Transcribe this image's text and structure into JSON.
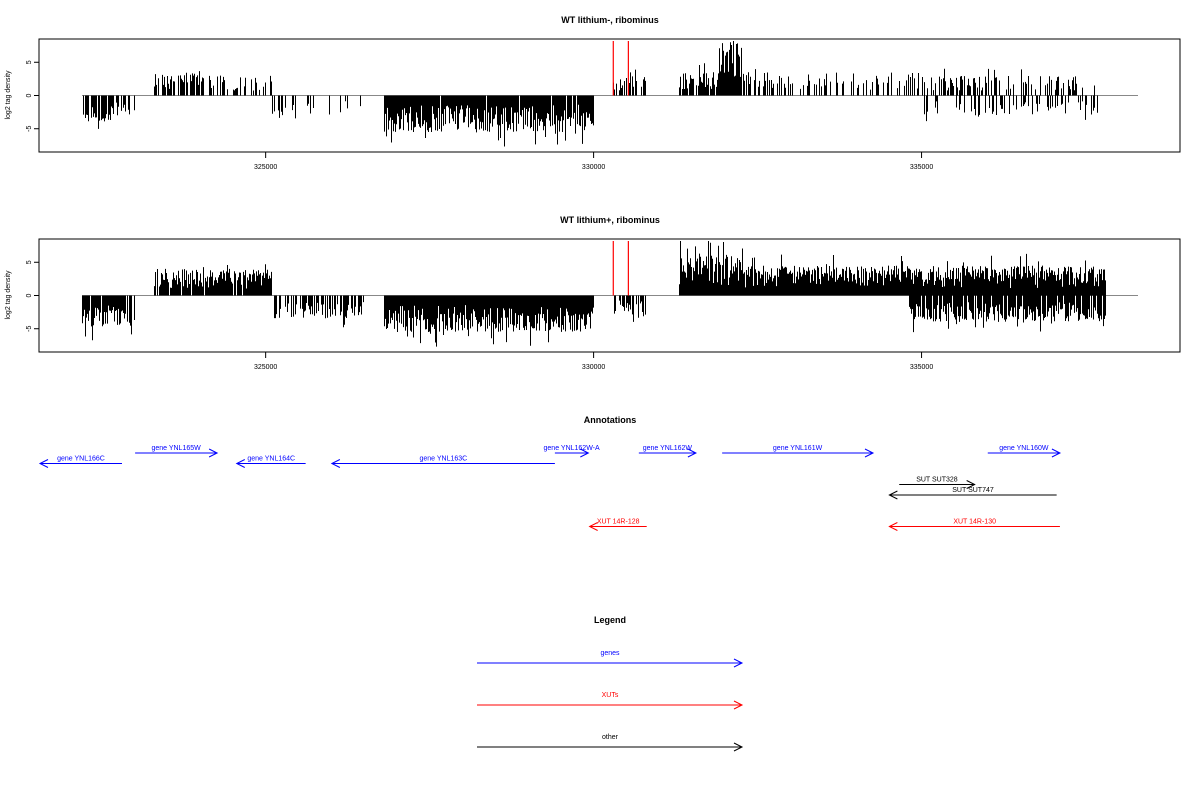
{
  "colors": {
    "gene": "#0000ff",
    "xut": "#ff0000",
    "other": "#000000",
    "highlight": "#ff0000",
    "density": "#000000",
    "baseline": "#888888"
  },
  "chart_data": [
    {
      "type": "bar",
      "title": "WT lithium-, ribominus",
      "ylabel": "log2 tag density",
      "xlim": [
        322200,
        338300
      ],
      "ylim": [
        -8.5,
        8.5
      ],
      "yticks": [
        -5,
        0,
        5
      ],
      "xticks": [
        325000,
        330000,
        335000
      ],
      "xtick_labels": [
        "325000",
        "330000",
        "335000"
      ],
      "highlight_lines": [
        330300,
        330530
      ],
      "segments": [
        {
          "start": 322200,
          "end": 322650,
          "sign": -1,
          "density": 0.7,
          "amp": 4.0
        },
        {
          "start": 322650,
          "end": 323000,
          "sign": -1,
          "density": 0.4,
          "amp": 3.0
        },
        {
          "start": 323000,
          "end": 323300,
          "sign": 0,
          "density": 0,
          "amp": 0
        },
        {
          "start": 323300,
          "end": 324000,
          "sign": 1,
          "density": 0.5,
          "amp": 3.8
        },
        {
          "start": 324000,
          "end": 325100,
          "sign": 1,
          "density": 0.25,
          "amp": 3.0
        },
        {
          "start": 325100,
          "end": 325500,
          "sign": -1,
          "density": 0.3,
          "amp": 3.5
        },
        {
          "start": 325500,
          "end": 326500,
          "sign": -1,
          "density": 0.2,
          "amp": 3.0
        },
        {
          "start": 326500,
          "end": 326800,
          "sign": 0,
          "density": 0,
          "amp": 0
        },
        {
          "start": 326800,
          "end": 330000,
          "sign": -1,
          "density": 0.95,
          "amp": 5.5
        },
        {
          "start": 330000,
          "end": 330300,
          "sign": 0,
          "density": 0,
          "amp": 0
        },
        {
          "start": 330300,
          "end": 330800,
          "sign": 1,
          "density": 0.4,
          "amp": 3.0
        },
        {
          "start": 330800,
          "end": 331300,
          "sign": 0,
          "density": 0,
          "amp": 0
        },
        {
          "start": 331300,
          "end": 331900,
          "sign": 1,
          "density": 0.8,
          "amp": 3.5
        },
        {
          "start": 331900,
          "end": 332250,
          "sign": 1,
          "density": 1.0,
          "amp": 8.0
        },
        {
          "start": 332250,
          "end": 335000,
          "sign": 1,
          "density": 0.3,
          "amp": 3.5
        },
        {
          "start": 335000,
          "end": 337700,
          "sign": 1,
          "density": 0.25,
          "amp": 3.0
        },
        {
          "start": 335000,
          "end": 337700,
          "sign": -1,
          "density": 0.2,
          "amp": 3.0
        }
      ]
    },
    {
      "type": "bar",
      "title": "WT lithium+, ribominus",
      "ylabel": "log2 tag density",
      "xlim": [
        322200,
        338300
      ],
      "ylim": [
        -8.5,
        8.5
      ],
      "yticks": [
        -5,
        0,
        5
      ],
      "xticks": [
        325000,
        330000,
        335000
      ],
      "xtick_labels": [
        "325000",
        "330000",
        "335000"
      ],
      "highlight_lines": [
        330300,
        330530
      ],
      "segments": [
        {
          "start": 322200,
          "end": 323000,
          "sign": -1,
          "density": 0.8,
          "amp": 5.0
        },
        {
          "start": 323000,
          "end": 323300,
          "sign": 0,
          "density": 0,
          "amp": 0
        },
        {
          "start": 323300,
          "end": 325100,
          "sign": 1,
          "density": 0.85,
          "amp": 4.0
        },
        {
          "start": 325100,
          "end": 326500,
          "sign": -1,
          "density": 0.5,
          "amp": 3.5
        },
        {
          "start": 326500,
          "end": 326800,
          "sign": 0,
          "density": 0,
          "amp": 0
        },
        {
          "start": 326800,
          "end": 330000,
          "sign": -1,
          "density": 1.0,
          "amp": 5.5
        },
        {
          "start": 330000,
          "end": 330300,
          "sign": 0,
          "density": 0,
          "amp": 0
        },
        {
          "start": 330300,
          "end": 330800,
          "sign": -1,
          "density": 0.5,
          "amp": 3.0
        },
        {
          "start": 330800,
          "end": 331300,
          "sign": 0,
          "density": 0,
          "amp": 0
        },
        {
          "start": 331300,
          "end": 332300,
          "sign": 1,
          "density": 1.0,
          "amp": 6.0
        },
        {
          "start": 332300,
          "end": 337800,
          "sign": 1,
          "density": 1.0,
          "amp": 4.5
        },
        {
          "start": 334800,
          "end": 337800,
          "sign": -1,
          "density": 0.8,
          "amp": 4.0
        }
      ]
    }
  ],
  "annotations": {
    "title": "Annotations",
    "xlim": [
      322200,
      338300
    ],
    "features": [
      {
        "label": "gene YNL166C",
        "kind": "gene",
        "start": 322200,
        "end": 323450,
        "strand": "-",
        "row": 1
      },
      {
        "label": "gene YNL165W",
        "kind": "gene",
        "start": 323650,
        "end": 324900,
        "strand": "+",
        "row": 0
      },
      {
        "label": "gene YNL164C",
        "kind": "gene",
        "start": 325200,
        "end": 326250,
        "strand": "-",
        "row": 1
      },
      {
        "label": "gene YNL163C",
        "kind": "gene",
        "start": 326650,
        "end": 330050,
        "strand": "-",
        "row": 1
      },
      {
        "label": "gene YNL162W-A",
        "kind": "gene",
        "start": 330050,
        "end": 330560,
        "strand": "+",
        "row": 0
      },
      {
        "label": "gene YNL162W",
        "kind": "gene",
        "start": 331330,
        "end": 332200,
        "strand": "+",
        "row": 0
      },
      {
        "label": "gene YNL161W",
        "kind": "gene",
        "start": 332600,
        "end": 334900,
        "strand": "+",
        "row": 0
      },
      {
        "label": "gene YNL160W",
        "kind": "gene",
        "start": 336650,
        "end": 337750,
        "strand": "+",
        "row": 0
      },
      {
        "label": "SUT SUT328",
        "kind": "other",
        "start": 335300,
        "end": 336450,
        "strand": "+",
        "row": 3
      },
      {
        "label": "SUT SUT747",
        "kind": "other",
        "start": 335150,
        "end": 337700,
        "strand": "-",
        "row": 4
      },
      {
        "label": "XUT 14R-128",
        "kind": "xut",
        "start": 330580,
        "end": 331450,
        "strand": "-",
        "row": 7
      },
      {
        "label": "XUT 14R-130",
        "kind": "xut",
        "start": 335150,
        "end": 337750,
        "strand": "-",
        "row": 7
      }
    ]
  },
  "legend": {
    "title": "Legend",
    "items": [
      {
        "label": "genes",
        "kind": "gene"
      },
      {
        "label": "XUTs",
        "kind": "xut"
      },
      {
        "label": "other",
        "kind": "other"
      }
    ]
  }
}
